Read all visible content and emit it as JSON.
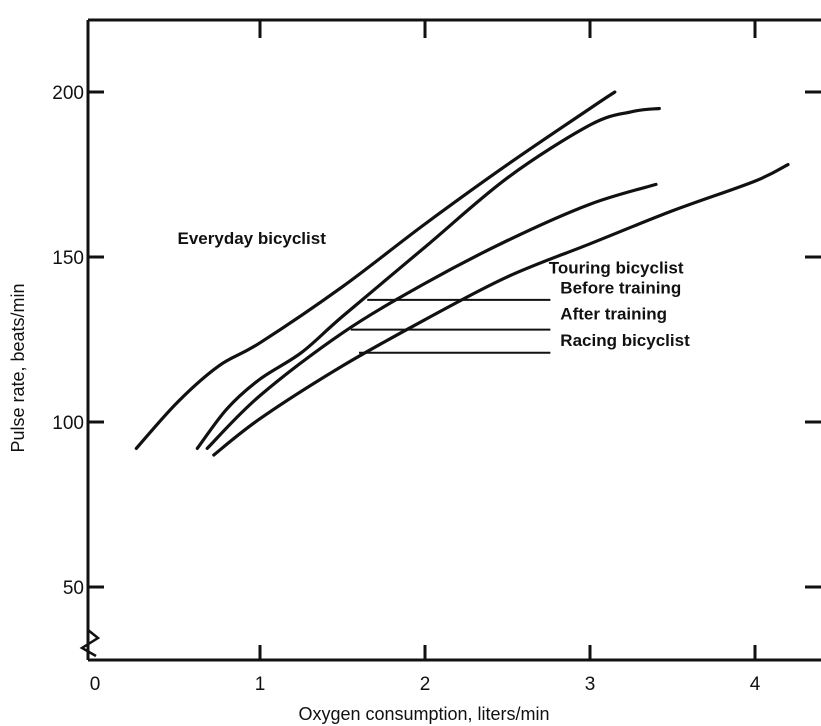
{
  "chart_data": {
    "type": "line",
    "xlabel": "Oxygen consumption, liters/min",
    "ylabel": "Pulse rate, beats/min",
    "xlim": [
      0,
      4.4
    ],
    "ylim": [
      25,
      225
    ],
    "x_ticks": [
      0,
      1,
      2,
      3,
      4
    ],
    "y_ticks": [
      50,
      100,
      150,
      200
    ],
    "x_tick_labels": [
      "0",
      "1",
      "2",
      "3",
      "4"
    ],
    "y_tick_labels": [
      "50",
      "100",
      "150",
      "200"
    ],
    "grid": false,
    "line_color": "#111111",
    "series": [
      {
        "name": "Everyday bicyclist",
        "x": [
          0.25,
          0.5,
          0.75,
          1.0,
          1.5,
          2.0,
          2.5,
          3.0,
          3.15
        ],
        "y": [
          92,
          106,
          117,
          124,
          141,
          160,
          178,
          195,
          200
        ]
      },
      {
        "name": "Before training",
        "x": [
          0.62,
          0.8,
          1.0,
          1.25,
          1.5,
          2.0,
          2.5,
          3.0,
          3.25,
          3.42
        ],
        "y": [
          92,
          104,
          113,
          121,
          132,
          153,
          174,
          190,
          194,
          195
        ]
      },
      {
        "name": "After training",
        "x": [
          0.68,
          1.0,
          1.5,
          2.0,
          2.5,
          3.0,
          3.4
        ],
        "y": [
          92,
          108,
          127,
          142,
          155,
          166,
          172
        ]
      },
      {
        "name": "Racing bicyclist",
        "x": [
          0.72,
          1.0,
          1.5,
          2.0,
          2.5,
          3.0,
          3.5,
          4.0,
          4.2
        ],
        "y": [
          90,
          101,
          117,
          131,
          144,
          154,
          164,
          173,
          178
        ]
      }
    ],
    "annotations": [
      {
        "text": "Everyday bicyclist",
        "x": 0.5,
        "y": 154
      },
      {
        "text": "Touring bicyclist",
        "x": 2.75,
        "y": 145
      },
      {
        "text": "Before training",
        "x": 2.82,
        "y": 139
      },
      {
        "text": "After training",
        "x": 2.82,
        "y": 131
      },
      {
        "text": "Racing bicyclist",
        "x": 2.82,
        "y": 123
      }
    ],
    "leaders": [
      {
        "x0": 1.65,
        "x1": 2.76,
        "y": 137
      },
      {
        "x0": 1.55,
        "x1": 2.76,
        "y": 128
      },
      {
        "x0": 1.6,
        "x1": 2.76,
        "y": 121
      }
    ]
  }
}
